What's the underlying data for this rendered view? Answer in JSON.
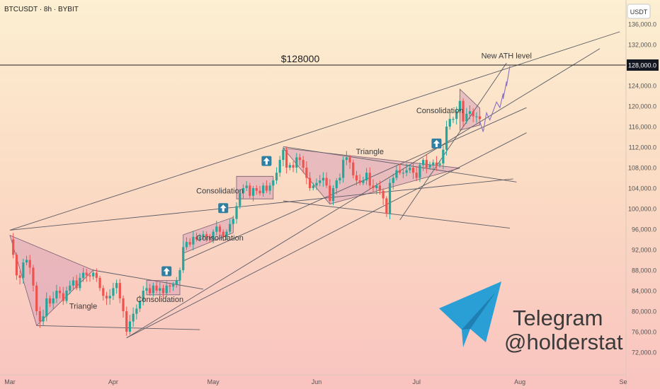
{
  "header": {
    "symbol_title": "BTCUSDT · 8h · BYBIT",
    "currency_badge": "USDT"
  },
  "branding": {
    "telegram_word": "Telegram",
    "telegram_handle": "@holderstat",
    "telegram_color": "#2a9fd6"
  },
  "colors": {
    "up_candle": "#26a69a",
    "down_candle": "#ef5350",
    "pattern_fill": "#d8a0b8",
    "trendline": "#5b5b66",
    "price_tag": "#131722",
    "arrow_badge": "#2f7fa0"
  },
  "chart_data": {
    "type": "candlestick",
    "timeframe": "8h",
    "x_ticks": [
      "Mar",
      "Apr",
      "May",
      "Jun",
      "Jul",
      "Aug",
      "Se"
    ],
    "y_ticks": [
      "136,000.0",
      "132,000.0",
      "128,000.0",
      "124,000.0",
      "120,000.0",
      "116,000.0",
      "112,000.0",
      "108,000.0",
      "104,000.0",
      "100,000.0",
      "96,000.0",
      "92,000.0",
      "88,000.0",
      "84,000.0",
      "80,000.0",
      "76,000.0",
      "72,000.0"
    ],
    "y_tick_values": [
      136000,
      132000,
      128000,
      124000,
      120000,
      116000,
      112000,
      108000,
      104000,
      100000,
      96000,
      92000,
      88000,
      84000,
      80000,
      76000,
      72000
    ],
    "ylim": [
      70000,
      138000
    ],
    "date_range": [
      "2025-03-01",
      "2025-09-01"
    ],
    "price_tag": "128,000.0",
    "horizontal_level": {
      "value": 128000,
      "label": "$128000"
    },
    "annotations": [
      {
        "text": "New ATH  level",
        "date": "2025-07-28",
        "price": 129300
      },
      {
        "text": "Triangle",
        "date": "2025-03-23",
        "price": 80500
      },
      {
        "text": "Consolidation",
        "date": "2025-04-15",
        "price": 81800
      },
      {
        "text": "Consolidation",
        "date": "2025-05-03",
        "price": 93800
      },
      {
        "text": "Consolidation",
        "date": "2025-05-03",
        "price": 103000
      },
      {
        "text": "Triangle",
        "date": "2025-06-17",
        "price": 110600
      },
      {
        "text": "Consolidation",
        "date": "2025-07-08",
        "price": 118600
      }
    ],
    "breakout_arrows": [
      {
        "date": "2025-04-17",
        "price": 87800
      },
      {
        "date": "2025-05-04",
        "price": 100100
      },
      {
        "date": "2025-05-17",
        "price": 109300
      },
      {
        "date": "2025-07-07",
        "price": 112700
      }
    ],
    "patterns": [
      {
        "name": "Triangle",
        "points": [
          [
            "2025-03-01",
            94800
          ],
          [
            "2025-03-26",
            88000
          ],
          [
            "2025-03-09",
            77200
          ]
        ]
      },
      {
        "name": "Consolidation",
        "points": [
          [
            "2025-04-11",
            86000
          ],
          [
            "2025-04-21",
            86000
          ],
          [
            "2025-04-21",
            83200
          ],
          [
            "2025-04-11",
            83200
          ]
        ]
      },
      {
        "name": "Consolidation",
        "points": [
          [
            "2025-04-22",
            94900
          ],
          [
            "2025-05-07",
            98300
          ],
          [
            "2025-05-07",
            95300
          ],
          [
            "2025-04-22",
            91300
          ]
        ]
      },
      {
        "name": "Consolidation",
        "points": [
          [
            "2025-05-08",
            106300
          ],
          [
            "2025-05-19",
            106300
          ],
          [
            "2025-05-19",
            101900
          ],
          [
            "2025-05-08",
            101900
          ]
        ]
      },
      {
        "name": "Triangle",
        "points": [
          [
            "2025-05-22",
            111800
          ],
          [
            "2025-07-14",
            107900
          ],
          [
            "2025-06-05",
            100900
          ]
        ]
      },
      {
        "name": "Consolidation",
        "points": [
          [
            "2025-07-14",
            123300
          ],
          [
            "2025-07-20",
            119600
          ],
          [
            "2025-07-20",
            116300
          ],
          [
            "2025-07-14",
            115300
          ]
        ]
      }
    ],
    "trendlines": [
      [
        [
          "2025-03-01",
          95800
        ],
        [
          "2025-08-31",
          134500
        ]
      ],
      [
        [
          "2025-03-01",
          95800
        ],
        [
          "2025-07-30",
          105800
        ]
      ],
      [
        [
          "2025-03-26",
          88000
        ],
        [
          "2025-04-28",
          84300
        ]
      ],
      [
        [
          "2025-03-09",
          77200
        ],
        [
          "2025-04-27",
          76400
        ]
      ],
      [
        [
          "2025-04-05",
          74800
        ],
        [
          "2025-08-25",
          131200
        ]
      ],
      [
        [
          "2025-04-05",
          74800
        ],
        [
          "2025-08-03",
          114800
        ]
      ],
      [
        [
          "2025-04-22",
          89800
        ],
        [
          "2025-08-03",
          119700
        ]
      ],
      [
        [
          "2025-05-22",
          112100
        ],
        [
          "2025-07-31",
          105200
        ]
      ],
      [
        [
          "2025-05-22",
          101500
        ],
        [
          "2025-07-29",
          96200
        ]
      ],
      [
        [
          "2025-06-26",
          97800
        ],
        [
          "2025-07-28",
          128400
        ]
      ]
    ],
    "projection": [
      [
        "2025-07-20",
        117000
      ],
      [
        "2025-07-21",
        115000
      ],
      [
        "2025-07-22",
        118700
      ],
      [
        "2025-07-23",
        117300
      ],
      [
        "2025-07-25",
        120800
      ],
      [
        "2025-07-26",
        119700
      ],
      [
        "2025-07-27",
        122500
      ],
      [
        "2025-07-27",
        121400
      ],
      [
        "2025-07-28",
        124800
      ],
      [
        "2025-07-28",
        123900
      ],
      [
        "2025-07-29",
        127800
      ]
    ],
    "series_close": [
      [
        "2025-03-01",
        94000
      ],
      [
        "2025-03-02",
        91000
      ],
      [
        "2025-03-03",
        87000
      ],
      [
        "2025-03-04",
        86500
      ],
      [
        "2025-03-05",
        89500
      ],
      [
        "2025-03-06",
        90000
      ],
      [
        "2025-03-07",
        88500
      ],
      [
        "2025-03-08",
        85000
      ],
      [
        "2025-03-09",
        80000
      ],
      [
        "2025-03-10",
        78000
      ],
      [
        "2025-03-11",
        79000
      ],
      [
        "2025-03-12",
        82500
      ],
      [
        "2025-03-13",
        81500
      ],
      [
        "2025-03-14",
        82500
      ],
      [
        "2025-03-15",
        84000
      ],
      [
        "2025-03-16",
        83500
      ],
      [
        "2025-03-17",
        82000
      ],
      [
        "2025-03-18",
        84000
      ],
      [
        "2025-03-19",
        85000
      ],
      [
        "2025-03-20",
        86000
      ],
      [
        "2025-03-21",
        84500
      ],
      [
        "2025-03-22",
        86500
      ],
      [
        "2025-03-23",
        87500
      ],
      [
        "2025-03-24",
        87000
      ],
      [
        "2025-03-25",
        86800
      ],
      [
        "2025-03-26",
        87500
      ],
      [
        "2025-03-27",
        86500
      ],
      [
        "2025-03-28",
        84500
      ],
      [
        "2025-03-29",
        83000
      ],
      [
        "2025-03-30",
        82500
      ],
      [
        "2025-03-31",
        83000
      ],
      [
        "2025-04-01",
        84500
      ],
      [
        "2025-04-02",
        85500
      ],
      [
        "2025-04-03",
        82500
      ],
      [
        "2025-04-04",
        80000
      ],
      [
        "2025-04-05",
        76000
      ],
      [
        "2025-04-06",
        78000
      ],
      [
        "2025-04-07",
        79500
      ],
      [
        "2025-04-08",
        80500
      ],
      [
        "2025-04-09",
        82000
      ],
      [
        "2025-04-10",
        84000
      ],
      [
        "2025-04-11",
        84500
      ],
      [
        "2025-04-12",
        83500
      ],
      [
        "2025-04-13",
        85000
      ],
      [
        "2025-04-14",
        84000
      ],
      [
        "2025-04-15",
        84500
      ],
      [
        "2025-04-16",
        83500
      ],
      [
        "2025-04-17",
        85000
      ],
      [
        "2025-04-18",
        84800
      ],
      [
        "2025-04-19",
        85200
      ],
      [
        "2025-04-20",
        86000
      ],
      [
        "2025-04-21",
        88000
      ],
      [
        "2025-04-22",
        92500
      ],
      [
        "2025-04-23",
        93500
      ],
      [
        "2025-04-24",
        93000
      ],
      [
        "2025-04-25",
        94500
      ],
      [
        "2025-04-26",
        94000
      ],
      [
        "2025-04-27",
        94500
      ],
      [
        "2025-04-28",
        95000
      ],
      [
        "2025-04-29",
        94500
      ],
      [
        "2025-04-30",
        94000
      ],
      [
        "2025-05-01",
        95500
      ],
      [
        "2025-05-02",
        96500
      ],
      [
        "2025-05-03",
        95500
      ],
      [
        "2025-05-04",
        94500
      ],
      [
        "2025-05-05",
        95500
      ],
      [
        "2025-05-06",
        97000
      ],
      [
        "2025-05-07",
        98000
      ],
      [
        "2025-05-08",
        100500
      ],
      [
        "2025-05-09",
        103000
      ],
      [
        "2025-05-10",
        104000
      ],
      [
        "2025-05-11",
        104500
      ],
      [
        "2025-05-12",
        102500
      ],
      [
        "2025-05-13",
        104000
      ],
      [
        "2025-05-14",
        103500
      ],
      [
        "2025-05-15",
        103000
      ],
      [
        "2025-05-16",
        104500
      ],
      [
        "2025-05-17",
        103500
      ],
      [
        "2025-05-18",
        104500
      ],
      [
        "2025-05-19",
        105500
      ],
      [
        "2025-05-20",
        107000
      ],
      [
        "2025-05-21",
        109500
      ],
      [
        "2025-05-22",
        111500
      ],
      [
        "2025-05-23",
        108000
      ],
      [
        "2025-05-24",
        108500
      ],
      [
        "2025-05-25",
        108000
      ],
      [
        "2025-05-26",
        110000
      ],
      [
        "2025-05-27",
        109500
      ],
      [
        "2025-05-28",
        108000
      ],
      [
        "2025-05-29",
        106000
      ],
      [
        "2025-05-30",
        104000
      ],
      [
        "2025-05-31",
        104500
      ],
      [
        "2025-06-01",
        105000
      ],
      [
        "2025-06-02",
        105500
      ],
      [
        "2025-06-03",
        106000
      ],
      [
        "2025-06-04",
        104500
      ],
      [
        "2025-06-05",
        101500
      ],
      [
        "2025-06-06",
        104000
      ],
      [
        "2025-06-07",
        105500
      ],
      [
        "2025-06-08",
        106000
      ],
      [
        "2025-06-09",
        109500
      ],
      [
        "2025-06-10",
        110000
      ],
      [
        "2025-06-11",
        109000
      ],
      [
        "2025-06-12",
        106500
      ],
      [
        "2025-06-13",
        105500
      ],
      [
        "2025-06-14",
        105000
      ],
      [
        "2025-06-15",
        105500
      ],
      [
        "2025-06-16",
        107000
      ],
      [
        "2025-06-17",
        104500
      ],
      [
        "2025-06-18",
        104000
      ],
      [
        "2025-06-19",
        104500
      ],
      [
        "2025-06-20",
        103500
      ],
      [
        "2025-06-21",
        102000
      ],
      [
        "2025-06-22",
        99000
      ],
      [
        "2025-06-23",
        105000
      ],
      [
        "2025-06-24",
        106000
      ],
      [
        "2025-06-25",
        107500
      ],
      [
        "2025-06-26",
        107000
      ],
      [
        "2025-06-27",
        107000
      ],
      [
        "2025-06-28",
        107500
      ],
      [
        "2025-06-29",
        108000
      ],
      [
        "2025-06-30",
        107000
      ],
      [
        "2025-07-01",
        106000
      ],
      [
        "2025-07-02",
        108500
      ],
      [
        "2025-07-03",
        109500
      ],
      [
        "2025-07-04",
        108000
      ],
      [
        "2025-07-05",
        108500
      ],
      [
        "2025-07-06",
        109000
      ],
      [
        "2025-07-07",
        108500
      ],
      [
        "2025-07-08",
        108800
      ],
      [
        "2025-07-09",
        111500
      ],
      [
        "2025-07-10",
        116000
      ],
      [
        "2025-07-11",
        117500
      ],
      [
        "2025-07-12",
        117500
      ],
      [
        "2025-07-13",
        119000
      ],
      [
        "2025-07-14",
        121000
      ],
      [
        "2025-07-15",
        117000
      ],
      [
        "2025-07-16",
        118500
      ],
      [
        "2025-07-17",
        119000
      ],
      [
        "2025-07-18",
        118000
      ],
      [
        "2025-07-19",
        118000
      ],
      [
        "2025-07-20",
        117500
      ]
    ]
  }
}
